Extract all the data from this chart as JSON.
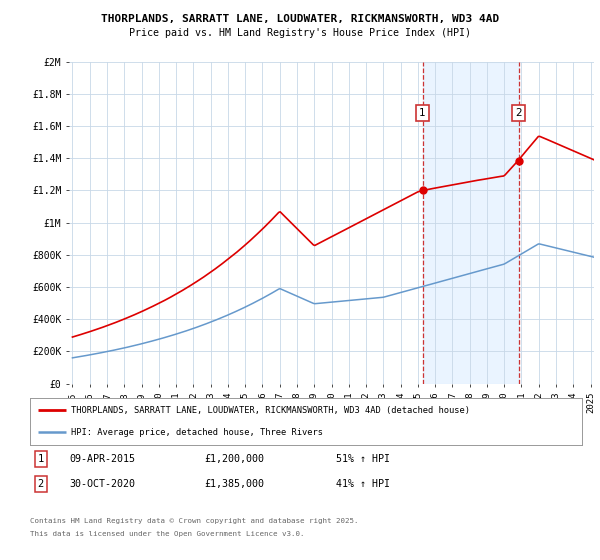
{
  "title1": "THORPLANDS, SARRATT LANE, LOUDWATER, RICKMANSWORTH, WD3 4AD",
  "title2": "Price paid vs. HM Land Registry's House Price Index (HPI)",
  "ylabel_ticks": [
    "£0",
    "£200K",
    "£400K",
    "£600K",
    "£800K",
    "£1M",
    "£1.2M",
    "£1.4M",
    "£1.6M",
    "£1.8M",
    "£2M"
  ],
  "ytick_values": [
    0,
    200000,
    400000,
    600000,
    800000,
    1000000,
    1200000,
    1400000,
    1600000,
    1800000,
    2000000
  ],
  "xmin_year": 1995,
  "xmax_year": 2025,
  "ymin": 0,
  "ymax": 2000000,
  "red_color": "#dd0000",
  "blue_color": "#6699cc",
  "blue_fill": "#ddeeff",
  "grid_color": "#cccccc",
  "bg_color": "#ffffff",
  "annotation1": {
    "label": "1",
    "date": "09-APR-2015",
    "price": "£1,200,000",
    "hpi": "51% ↑ HPI",
    "x_year": 2015.27,
    "y_val": 1200000
  },
  "annotation2": {
    "label": "2",
    "date": "30-OCT-2020",
    "price": "£1,385,000",
    "hpi": "41% ↑ HPI",
    "x_year": 2020.83,
    "y_val": 1385000
  },
  "legend_red": "THORPLANDS, SARRATT LANE, LOUDWATER, RICKMANSWORTH, WD3 4AD (detached house)",
  "legend_blue": "HPI: Average price, detached house, Three Rivers",
  "footer1": "Contains HM Land Registry data © Crown copyright and database right 2025.",
  "footer2": "This data is licensed under the Open Government Licence v3.0.",
  "xtick_years": [
    1995,
    1996,
    1997,
    1998,
    1999,
    2000,
    2001,
    2002,
    2003,
    2004,
    2005,
    2006,
    2007,
    2008,
    2009,
    2010,
    2011,
    2012,
    2013,
    2014,
    2015,
    2016,
    2017,
    2018,
    2019,
    2020,
    2021,
    2022,
    2023,
    2024,
    2025
  ]
}
